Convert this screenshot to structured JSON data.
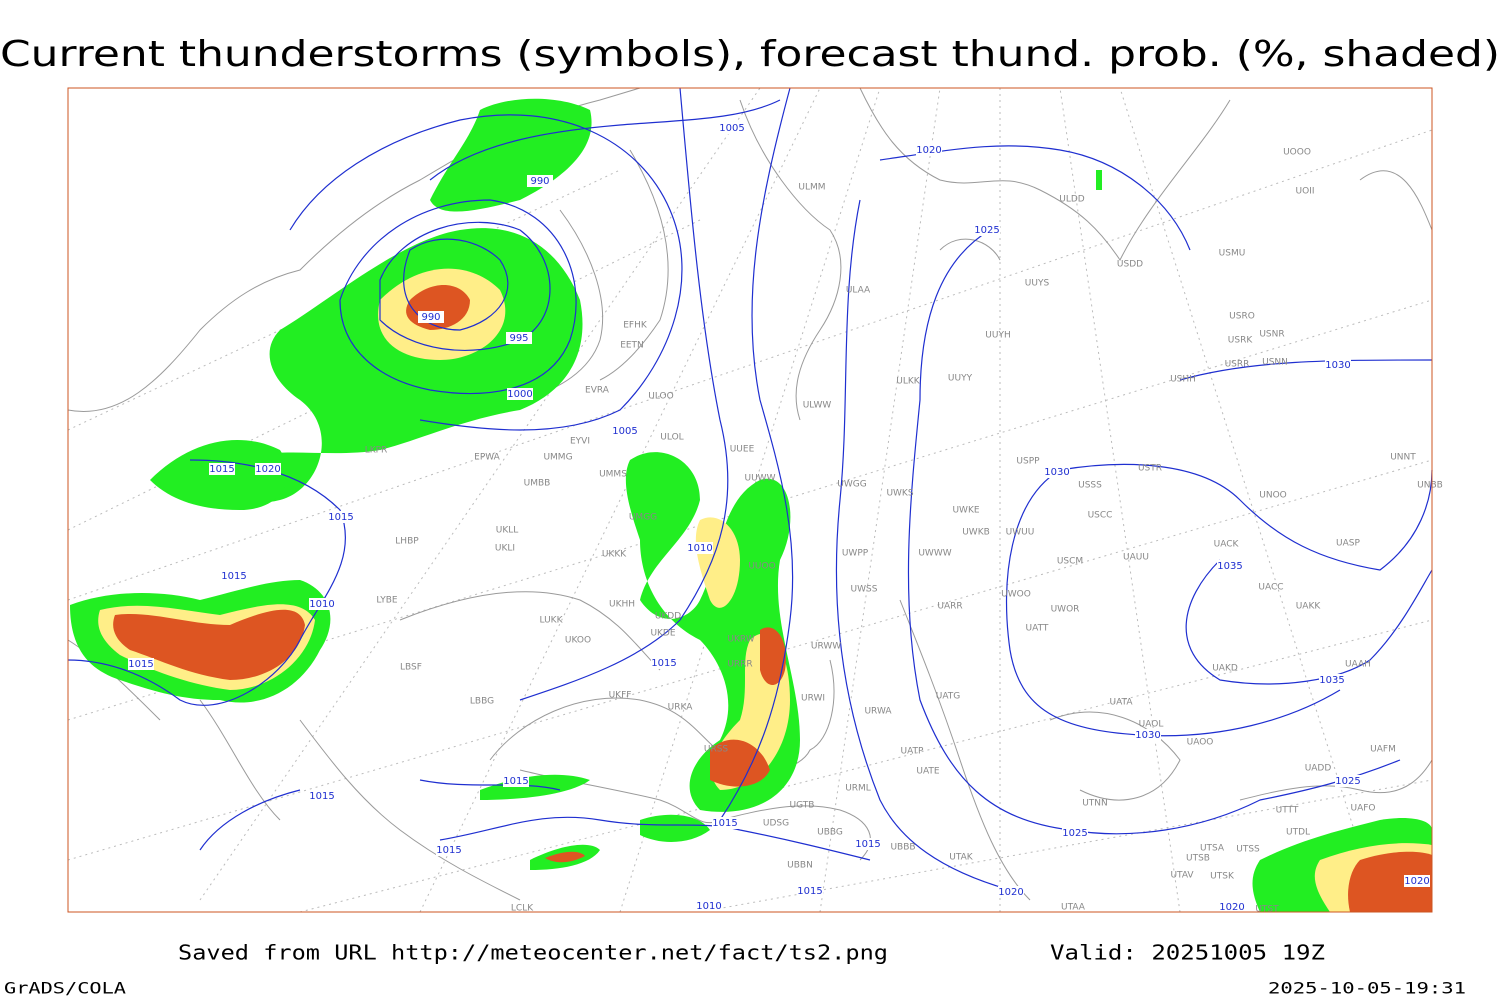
{
  "title": "Current thunderstorms (symbols), forecast thund. prob. (%, shaded)",
  "footer": {
    "source": "Saved from URL http://meteocenter.net/fact/ts2.png",
    "valid": "Valid: 20251005 19Z",
    "software": "GrADS/COLA",
    "timestamp": "2025-10-05-19:31"
  },
  "isobar_labels": [
    "1005",
    "1020",
    "990",
    "1025",
    "990",
    "995",
    "1000",
    "1005",
    "1015",
    "1020",
    "1015",
    "1030",
    "1010",
    "1035",
    "1015",
    "1010",
    "1015",
    "1015",
    "1030",
    "1015",
    "1015",
    "1025",
    "1015",
    "1025",
    "1015",
    "1015",
    "1020",
    "1015",
    "1010",
    "1020",
    "1020",
    "1030",
    "1035"
  ],
  "stations": [
    "ULMM",
    "ULDD",
    "UOOO",
    "UOII",
    "USDD",
    "USMU",
    "UUYS",
    "ULAA",
    "USRO",
    "USRK",
    "USNR",
    "UUYH",
    "EFHK",
    "EETN",
    "USRR",
    "USNN",
    "USHH",
    "ULKK",
    "UUYY",
    "EVRA",
    "ULOO",
    "ULWW",
    "ULOL",
    "EYVI",
    "UUEE",
    "EPWA",
    "UMMG",
    "USPP",
    "USTR",
    "UNNT",
    "USSS",
    "UMMS",
    "UMBB",
    "UUWW",
    "UWGG",
    "UWKS",
    "UNOO",
    "UNBB",
    "UWKE",
    "USCC",
    "UWKB",
    "UWUU",
    "UACK",
    "UASP",
    "UMGG",
    "UKLL",
    "UKLI",
    "LKPR",
    "LHBP",
    "UKKK",
    "UWWW",
    "UWPP",
    "USCM",
    "UAUU",
    "UUOO",
    "UWSS",
    "UACC",
    "UARR",
    "UWOO",
    "UWOR",
    "UAKK",
    "LYBE",
    "LUKK",
    "UKHH",
    "UKDD",
    "UKOO",
    "UKDE",
    "UATT",
    "UKRW",
    "URWW",
    "LBSF",
    "URRR",
    "UAKD",
    "UAAH",
    "LBBG",
    "URWI",
    "UATG",
    "UATA",
    "UKFF",
    "URKA",
    "URWA",
    "UAOL",
    "UAOO",
    "UAFM",
    "UATP",
    "UATE",
    "UADD",
    "URSS",
    "URML",
    "UTNN",
    "UGTB",
    "UTTT",
    "UTDL",
    "UAFO",
    "UDSG",
    "UBBG",
    "UBBB",
    "UTSA",
    "UTSS",
    "UTSB",
    "UTAK",
    "UBBN",
    "UTAV",
    "UTSK",
    "UTAA",
    "UTST",
    "LCLK"
  ]
}
